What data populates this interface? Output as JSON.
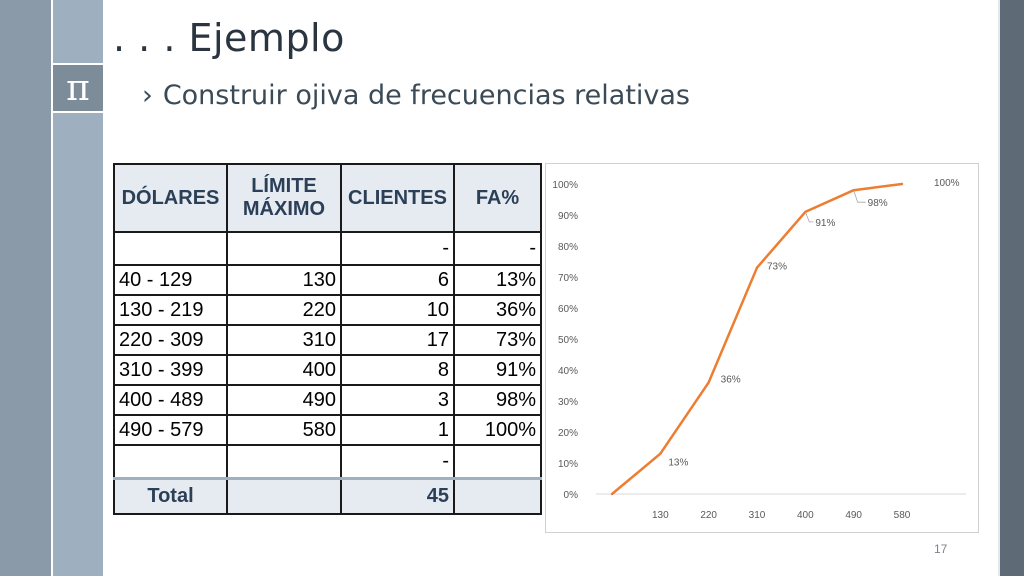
{
  "slide": {
    "title": ". . . Ejemplo",
    "bullet": "Construir ojiva de frecuencias relativas",
    "logo_symbol": "π",
    "slide_number": "17"
  },
  "table": {
    "headers": [
      "DÓLARES",
      "LÍMITE MÁXIMO",
      "CLIENTES",
      "FA%"
    ],
    "header_limite_line1": "LÍMITE",
    "header_limite_line2": "MÁXIMO",
    "first_row": [
      "",
      "",
      "-",
      "-"
    ],
    "rows": [
      [
        "40 - 129",
        "130",
        "6",
        "13%"
      ],
      [
        "130 - 219",
        "220",
        "10",
        "36%"
      ],
      [
        "220 - 309",
        "310",
        "17",
        "73%"
      ],
      [
        "310 - 399",
        "400",
        "8",
        "91%"
      ],
      [
        "400 - 489",
        "490",
        "3",
        "98%"
      ],
      [
        "490 - 579",
        "580",
        "1",
        "100%"
      ]
    ],
    "last_blank_row": [
      "",
      "",
      "-",
      ""
    ],
    "total_label": "Total",
    "total_value": "45"
  },
  "chart_data": {
    "type": "line",
    "x": [
      "",
      "130",
      "220",
      "310",
      "400",
      "490",
      "580"
    ],
    "values": [
      0,
      13,
      36,
      73,
      91,
      98,
      100
    ],
    "data_labels": [
      "",
      "13%",
      "36%",
      "73%",
      "91%",
      "98%",
      "100%"
    ],
    "y_ticks": [
      "0%",
      "10%",
      "20%",
      "30%",
      "40%",
      "50%",
      "60%",
      "70%",
      "80%",
      "90%",
      "100%"
    ],
    "ylim": [
      0,
      100
    ],
    "line_color": "#ed7d31",
    "grid": false
  },
  "colors": {
    "header_bg": "#e6ebf1",
    "header_text": "#2b3f57",
    "sidebar": "#8a9aa9"
  }
}
